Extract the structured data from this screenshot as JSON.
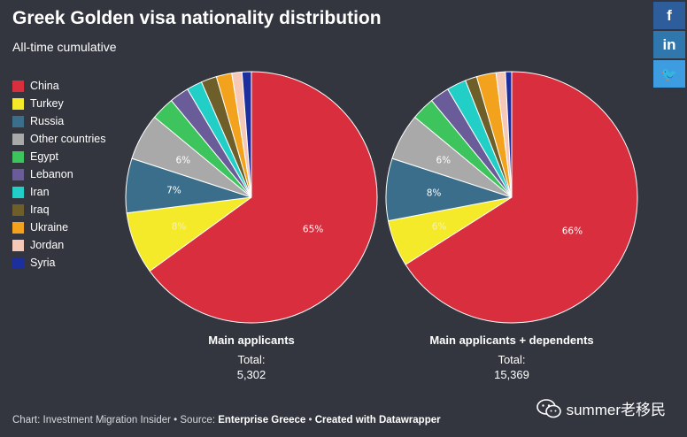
{
  "header": {
    "title": "Greek Golden visa nationality distribution",
    "subtitle": "All-time cumulative"
  },
  "legend": [
    {
      "label": "China",
      "color": "#d92e3d"
    },
    {
      "label": "Turkey",
      "color": "#f5ea2a"
    },
    {
      "label": "Russia",
      "color": "#3a6e8a"
    },
    {
      "label": "Other countries",
      "color": "#a9a9a9"
    },
    {
      "label": "Egypt",
      "color": "#3ec45c"
    },
    {
      "label": "Lebanon",
      "color": "#6a5c99"
    },
    {
      "label": "Iran",
      "color": "#22cfc6"
    },
    {
      "label": "Iraq",
      "color": "#6e5f2a"
    },
    {
      "label": "Ukraine",
      "color": "#f2a21c"
    },
    {
      "label": "Jordan",
      "color": "#f6c8b8"
    },
    {
      "label": "Syria",
      "color": "#1d2f9c"
    }
  ],
  "chart_data": [
    {
      "type": "pie",
      "title": "Main applicants",
      "total_label": "Total:",
      "total": "5,302",
      "categories": [
        "China",
        "Turkey",
        "Russia",
        "Other countries",
        "Egypt",
        "Lebanon",
        "Iran",
        "Iraq",
        "Ukraine",
        "Jordan",
        "Syria"
      ],
      "values": [
        65,
        8,
        7,
        6,
        3,
        2.5,
        2,
        2,
        2,
        1.3,
        1.2
      ],
      "labels": [
        "65%",
        "8%",
        "7%",
        "6%",
        "",
        "",
        "",
        "",
        "",
        "",
        ""
      ]
    },
    {
      "type": "pie",
      "title": "Main applicants + dependents",
      "total_label": "Total:",
      "total": "15,369",
      "categories": [
        "China",
        "Turkey",
        "Russia",
        "Other countries",
        "Egypt",
        "Lebanon",
        "Iran",
        "Iraq",
        "Ukraine",
        "Jordan",
        "Syria"
      ],
      "values": [
        66,
        6,
        8,
        6,
        3,
        2.5,
        2.5,
        1.5,
        2.5,
        1.2,
        0.8
      ],
      "labels": [
        "66%",
        "6%",
        "8%",
        "6%",
        "",
        "",
        "",
        "",
        "",
        "",
        ""
      ]
    }
  ],
  "footer": {
    "prefix": "Chart: Investment Migration Insider • Source: ",
    "source": "Enterprise Greece",
    "sep": " • ",
    "credit": "Created with Datawrapper"
  },
  "social": {
    "facebook": "f",
    "linkedin": "in",
    "twitter": "🐦"
  },
  "watermark": {
    "text": "summer老移民"
  }
}
